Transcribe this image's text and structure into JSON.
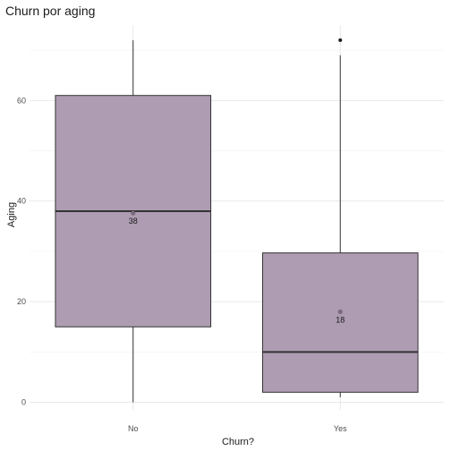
{
  "chart_data": {
    "type": "boxplot",
    "title": "Churn por aging",
    "xlabel": "Churn?",
    "ylabel": "Aging",
    "categories": [
      "No",
      "Yes"
    ],
    "ylim": [
      -1.5,
      75
    ],
    "yticks": [
      0,
      20,
      40,
      60
    ],
    "grid": true,
    "legend": "none",
    "box_color": "#ae9cb2",
    "edge_color": "#333333",
    "mean_color": "#7a6a7e",
    "boxes": [
      {
        "category": "No",
        "min": 0,
        "q1": 15,
        "median": 38,
        "q3": 61,
        "max": 72,
        "mean": 37.6,
        "mean_label": "38",
        "outliers": []
      },
      {
        "category": "Yes",
        "min": 1,
        "q1": 2,
        "median": 10,
        "q3": 29.7,
        "max": 69,
        "mean": 18,
        "mean_label": "18",
        "outliers": [
          72
        ]
      }
    ]
  }
}
